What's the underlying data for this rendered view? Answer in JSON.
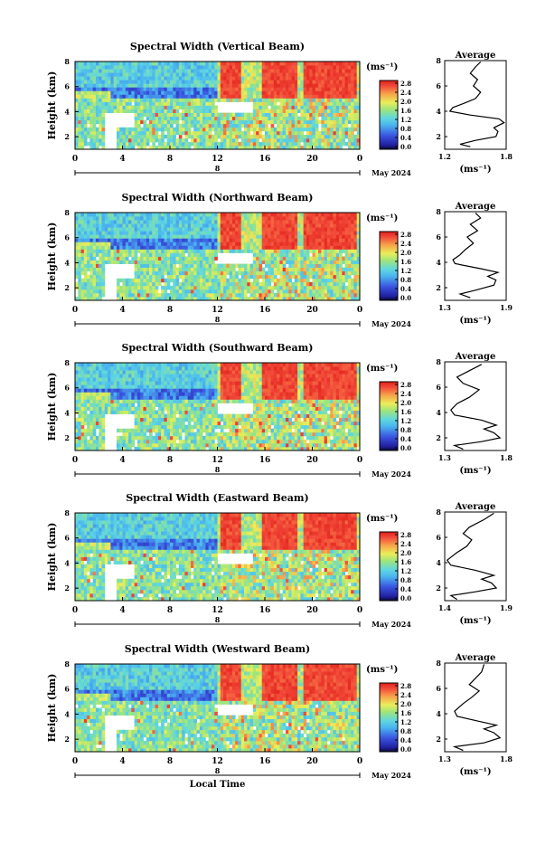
{
  "chart_data": [
    {
      "type": "heatmap",
      "title": "Spectral Width (Vertical Beam)",
      "ylabel": "Height (km)",
      "xlabel": "",
      "x_ticks": [
        "0",
        "4",
        "8",
        "12",
        "16",
        "20",
        "0"
      ],
      "y_ticks": [
        "2",
        "4",
        "6",
        "8"
      ],
      "date_mid": "8",
      "date_right": "May 2024",
      "colorbar_unit": "(ms⁻¹)",
      "colorbar_ticks": [
        "0.0",
        "0.4",
        "0.8",
        "1.2",
        "1.6",
        "2.0",
        "2.4",
        "2.8"
      ],
      "profile": {
        "title": "Average",
        "xlabel": "(ms⁻¹)",
        "x_ticks": [
          "1.2",
          "1.8"
        ],
        "xlim": [
          1.2,
          1.8
        ],
        "y_ticks": [
          "2",
          "4",
          "6",
          "8"
        ],
        "ylim": [
          1,
          8
        ],
        "points": [
          [
            1.45,
            1.2
          ],
          [
            1.35,
            1.4
          ],
          [
            1.5,
            1.7
          ],
          [
            1.7,
            2.0
          ],
          [
            1.72,
            2.4
          ],
          [
            1.68,
            2.7
          ],
          [
            1.78,
            3.1
          ],
          [
            1.73,
            3.4
          ],
          [
            1.45,
            3.7
          ],
          [
            1.25,
            4.0
          ],
          [
            1.28,
            4.3
          ],
          [
            1.38,
            4.6
          ],
          [
            1.5,
            5.0
          ],
          [
            1.55,
            5.5
          ],
          [
            1.48,
            6.0
          ],
          [
            1.52,
            6.5
          ],
          [
            1.45,
            7.0
          ],
          [
            1.5,
            7.5
          ],
          [
            1.55,
            7.9
          ]
        ]
      }
    },
    {
      "type": "heatmap",
      "title": "Spectral Width (Northward Beam)",
      "ylabel": "Height (km)",
      "xlabel": "",
      "x_ticks": [
        "0",
        "4",
        "8",
        "12",
        "16",
        "20",
        "0"
      ],
      "y_ticks": [
        "2",
        "4",
        "6",
        "8"
      ],
      "date_mid": "8",
      "date_right": "May 2024",
      "colorbar_unit": "(ms⁻¹)",
      "colorbar_ticks": [
        "0.0",
        "0.4",
        "0.8",
        "1.2",
        "1.6",
        "2.0",
        "2.4",
        "2.8"
      ],
      "profile": {
        "title": "Average",
        "xlabel": "(ms⁻¹)",
        "x_ticks": [
          "1.3",
          "1.9"
        ],
        "xlim": [
          1.3,
          1.9
        ],
        "y_ticks": [
          "2",
          "4",
          "6",
          "8"
        ],
        "ylim": [
          1,
          8
        ],
        "points": [
          [
            1.55,
            1.2
          ],
          [
            1.45,
            1.5
          ],
          [
            1.6,
            1.8
          ],
          [
            1.78,
            2.2
          ],
          [
            1.8,
            2.6
          ],
          [
            1.72,
            2.9
          ],
          [
            1.82,
            3.2
          ],
          [
            1.65,
            3.5
          ],
          [
            1.4,
            3.9
          ],
          [
            1.38,
            4.2
          ],
          [
            1.45,
            4.6
          ],
          [
            1.5,
            5.0
          ],
          [
            1.58,
            5.5
          ],
          [
            1.52,
            6.0
          ],
          [
            1.62,
            6.5
          ],
          [
            1.55,
            7.0
          ],
          [
            1.65,
            7.5
          ],
          [
            1.6,
            7.9
          ]
        ]
      }
    },
    {
      "type": "heatmap",
      "title": "Spectral Width (Southward Beam)",
      "ylabel": "Height (km)",
      "xlabel": "",
      "x_ticks": [
        "0",
        "4",
        "8",
        "12",
        "16",
        "20",
        "0"
      ],
      "y_ticks": [
        "2",
        "4",
        "6",
        "8"
      ],
      "date_mid": "8",
      "date_right": "May 2024",
      "colorbar_unit": "(ms⁻¹)",
      "colorbar_ticks": [
        "0.0",
        "0.4",
        "0.8",
        "1.2",
        "1.6",
        "2.0",
        "2.4",
        "2.8"
      ],
      "profile": {
        "title": "Average",
        "xlabel": "(ms⁻¹)",
        "x_ticks": [
          "1.3",
          "1.8"
        ],
        "xlim": [
          1.3,
          1.8
        ],
        "y_ticks": [
          "2",
          "4",
          "6",
          "8"
        ],
        "ylim": [
          1,
          8
        ],
        "points": [
          [
            1.45,
            1.1
          ],
          [
            1.38,
            1.4
          ],
          [
            1.6,
            1.7
          ],
          [
            1.75,
            2.0
          ],
          [
            1.7,
            2.4
          ],
          [
            1.62,
            2.7
          ],
          [
            1.72,
            3.0
          ],
          [
            1.6,
            3.4
          ],
          [
            1.38,
            3.8
          ],
          [
            1.35,
            4.2
          ],
          [
            1.4,
            4.7
          ],
          [
            1.5,
            5.2
          ],
          [
            1.58,
            5.8
          ],
          [
            1.45,
            6.3
          ],
          [
            1.4,
            6.8
          ],
          [
            1.5,
            7.3
          ],
          [
            1.6,
            7.8
          ]
        ]
      }
    },
    {
      "type": "heatmap",
      "title": "Spectral Width (Eastward Beam)",
      "ylabel": "Height (km)",
      "xlabel": "",
      "x_ticks": [
        "0",
        "4",
        "8",
        "12",
        "16",
        "20",
        "0"
      ],
      "y_ticks": [
        "2",
        "4",
        "6",
        "8"
      ],
      "date_mid": "8",
      "date_right": "May 2024",
      "colorbar_unit": "(ms⁻¹)",
      "colorbar_ticks": [
        "0.0",
        "0.4",
        "0.8",
        "1.2",
        "1.6",
        "2.0",
        "2.4",
        "2.8"
      ],
      "profile": {
        "title": "Average",
        "xlabel": "(ms⁻¹)",
        "x_ticks": [
          "1.4",
          "1.9"
        ],
        "xlim": [
          1.4,
          1.9
        ],
        "y_ticks": [
          "2",
          "4",
          "6",
          "8"
        ],
        "ylim": [
          1,
          8
        ],
        "points": [
          [
            1.5,
            1.1
          ],
          [
            1.45,
            1.4
          ],
          [
            1.65,
            1.7
          ],
          [
            1.82,
            2.0
          ],
          [
            1.78,
            2.4
          ],
          [
            1.7,
            2.7
          ],
          [
            1.8,
            3.0
          ],
          [
            1.65,
            3.4
          ],
          [
            1.45,
            3.8
          ],
          [
            1.42,
            4.2
          ],
          [
            1.5,
            4.8
          ],
          [
            1.58,
            5.3
          ],
          [
            1.62,
            5.8
          ],
          [
            1.55,
            6.3
          ],
          [
            1.6,
            6.8
          ],
          [
            1.72,
            7.4
          ],
          [
            1.8,
            7.9
          ]
        ]
      }
    },
    {
      "type": "heatmap",
      "title": "Spectral Width (Westward Beam)",
      "ylabel": "Height (km)",
      "xlabel": "Local Time",
      "x_ticks": [
        "0",
        "4",
        "8",
        "12",
        "16",
        "20",
        "0"
      ],
      "y_ticks": [
        "2",
        "4",
        "6",
        "8"
      ],
      "date_mid": "8",
      "date_right": "May 2024",
      "colorbar_unit": "(ms⁻¹)",
      "colorbar_ticks": [
        "0.0",
        "0.4",
        "0.8",
        "1.2",
        "1.6",
        "2.0",
        "2.4",
        "2.8"
      ],
      "profile": {
        "title": "Average",
        "xlabel": "(ms⁻¹)",
        "x_ticks": [
          "1.3",
          "1.8"
        ],
        "xlim": [
          1.3,
          1.8
        ],
        "y_ticks": [
          "2",
          "4",
          "6",
          "8"
        ],
        "ylim": [
          1,
          8
        ],
        "points": [
          [
            1.45,
            1.1
          ],
          [
            1.38,
            1.4
          ],
          [
            1.62,
            1.7
          ],
          [
            1.75,
            2.1
          ],
          [
            1.7,
            2.5
          ],
          [
            1.62,
            2.8
          ],
          [
            1.72,
            3.1
          ],
          [
            1.58,
            3.4
          ],
          [
            1.4,
            3.8
          ],
          [
            1.38,
            4.2
          ],
          [
            1.45,
            4.8
          ],
          [
            1.52,
            5.3
          ],
          [
            1.58,
            5.8
          ],
          [
            1.5,
            6.3
          ],
          [
            1.55,
            6.8
          ],
          [
            1.6,
            7.3
          ],
          [
            1.62,
            7.9
          ]
        ]
      }
    }
  ]
}
